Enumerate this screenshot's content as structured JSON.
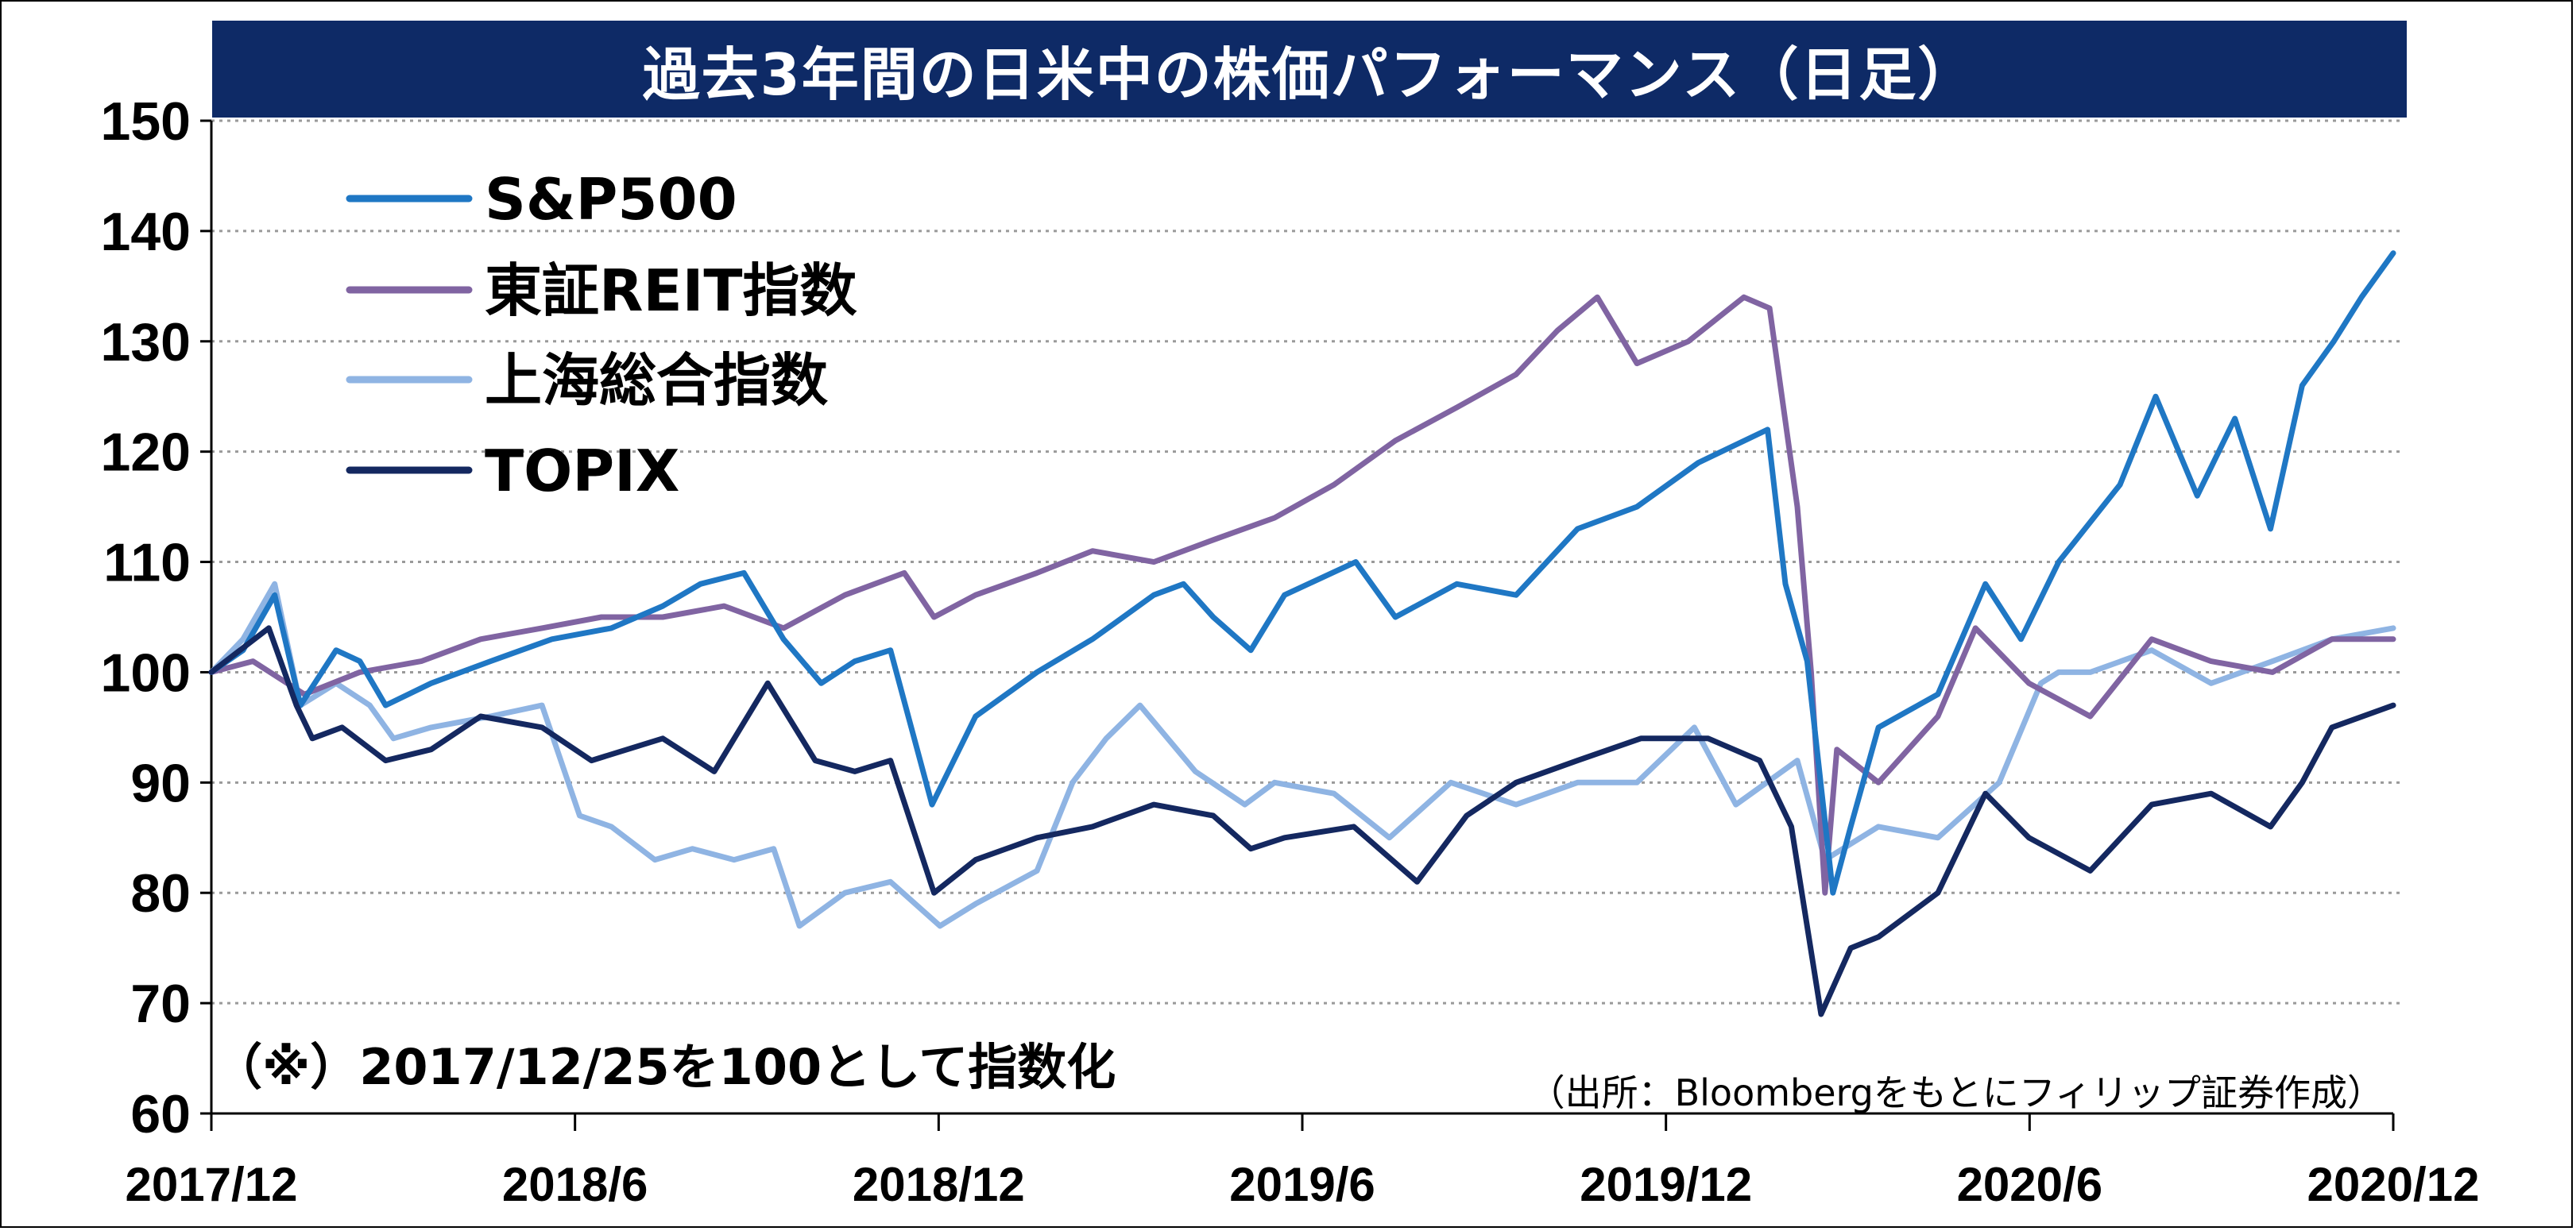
{
  "chart_data": {
    "type": "line",
    "title": "過去3年間の日米中の株価パフォーマンス（日足）",
    "xlabel": "",
    "ylabel": "",
    "ylim": [
      60,
      150
    ],
    "yticks": [
      60,
      70,
      80,
      90,
      100,
      110,
      120,
      130,
      140,
      150
    ],
    "xlim": [
      "2017-12-25",
      "2020-12-31"
    ],
    "xticks": [
      "2017/12",
      "2018/6",
      "2018/12",
      "2019/6",
      "2019/12",
      "2020/6",
      "2020/12"
    ],
    "grid": "horizontal dotted",
    "legend_position": "top-left",
    "note": "（※）2017/12/25を100として指数化",
    "source": "（出所：Bloombergをもとにフィリップ証券作成）",
    "series": [
      {
        "name": "S&P500",
        "color": "#1f77c4",
        "points": [
          [
            "2017-12-25",
            100
          ],
          [
            "2018-01-10",
            102
          ],
          [
            "2018-01-26",
            107
          ],
          [
            "2018-02-08",
            97
          ],
          [
            "2018-02-26",
            102
          ],
          [
            "2018-03-10",
            101
          ],
          [
            "2018-03-23",
            97
          ],
          [
            "2018-04-15",
            99
          ],
          [
            "2018-05-15",
            101
          ],
          [
            "2018-06-15",
            103
          ],
          [
            "2018-07-15",
            104
          ],
          [
            "2018-08-10",
            106
          ],
          [
            "2018-08-29",
            108
          ],
          [
            "2018-09-20",
            109
          ],
          [
            "2018-10-10",
            103
          ],
          [
            "2018-10-29",
            99
          ],
          [
            "2018-11-15",
            101
          ],
          [
            "2018-12-03",
            102
          ],
          [
            "2018-12-24",
            88
          ],
          [
            "2019-01-15",
            96
          ],
          [
            "2019-02-15",
            100
          ],
          [
            "2019-03-15",
            103
          ],
          [
            "2019-04-15",
            107
          ],
          [
            "2019-04-30",
            108
          ],
          [
            "2019-05-15",
            105
          ],
          [
            "2019-06-03",
            102
          ],
          [
            "2019-06-20",
            107
          ],
          [
            "2019-07-26",
            110
          ],
          [
            "2019-08-15",
            105
          ],
          [
            "2019-09-15",
            108
          ],
          [
            "2019-10-15",
            107
          ],
          [
            "2019-11-15",
            113
          ],
          [
            "2019-12-15",
            115
          ],
          [
            "2020-01-15",
            119
          ],
          [
            "2020-02-19",
            122
          ],
          [
            "2020-02-28",
            108
          ],
          [
            "2020-03-10",
            101
          ],
          [
            "2020-03-23",
            80
          ],
          [
            "2020-04-01",
            86
          ],
          [
            "2020-04-15",
            95
          ],
          [
            "2020-05-15",
            98
          ],
          [
            "2020-06-08",
            108
          ],
          [
            "2020-06-26",
            103
          ],
          [
            "2020-07-15",
            110
          ],
          [
            "2020-08-15",
            117
          ],
          [
            "2020-09-02",
            125
          ],
          [
            "2020-09-23",
            116
          ],
          [
            "2020-10-12",
            123
          ],
          [
            "2020-10-30",
            113
          ],
          [
            "2020-11-15",
            126
          ],
          [
            "2020-12-01",
            130
          ],
          [
            "2020-12-15",
            134
          ],
          [
            "2020-12-31",
            138
          ]
        ]
      },
      {
        "name": "東証REIT指数",
        "color": "#8064a2",
        "points": [
          [
            "2017-12-25",
            100
          ],
          [
            "2018-01-15",
            101
          ],
          [
            "2018-02-10",
            98
          ],
          [
            "2018-03-10",
            100
          ],
          [
            "2018-04-10",
            101
          ],
          [
            "2018-05-10",
            103
          ],
          [
            "2018-06-10",
            104
          ],
          [
            "2018-07-10",
            105
          ],
          [
            "2018-08-10",
            105
          ],
          [
            "2018-09-10",
            106
          ],
          [
            "2018-10-10",
            104
          ],
          [
            "2018-11-10",
            107
          ],
          [
            "2018-12-10",
            109
          ],
          [
            "2018-12-25",
            105
          ],
          [
            "2019-01-15",
            107
          ],
          [
            "2019-02-15",
            109
          ],
          [
            "2019-03-15",
            111
          ],
          [
            "2019-04-15",
            110
          ],
          [
            "2019-05-15",
            112
          ],
          [
            "2019-06-15",
            114
          ],
          [
            "2019-07-15",
            117
          ],
          [
            "2019-08-15",
            121
          ],
          [
            "2019-09-15",
            124
          ],
          [
            "2019-10-15",
            127
          ],
          [
            "2019-11-05",
            131
          ],
          [
            "2019-11-25",
            134
          ],
          [
            "2019-12-15",
            128
          ],
          [
            "2020-01-10",
            130
          ],
          [
            "2020-02-07",
            134
          ],
          [
            "2020-02-20",
            133
          ],
          [
            "2020-03-05",
            115
          ],
          [
            "2020-03-12",
            100
          ],
          [
            "2020-03-19",
            80
          ],
          [
            "2020-03-25",
            93
          ],
          [
            "2020-04-15",
            90
          ],
          [
            "2020-05-15",
            96
          ],
          [
            "2020-06-03",
            104
          ],
          [
            "2020-06-30",
            99
          ],
          [
            "2020-07-31",
            96
          ],
          [
            "2020-08-31",
            103
          ],
          [
            "2020-09-30",
            101
          ],
          [
            "2020-10-31",
            100
          ],
          [
            "2020-11-30",
            103
          ],
          [
            "2020-12-31",
            103
          ]
        ]
      },
      {
        "name": "上海総合指数",
        "color": "#8fb4e3",
        "points": [
          [
            "2017-12-25",
            100
          ],
          [
            "2018-01-10",
            103
          ],
          [
            "2018-01-26",
            108
          ],
          [
            "2018-02-08",
            97
          ],
          [
            "2018-02-26",
            99
          ],
          [
            "2018-03-15",
            97
          ],
          [
            "2018-03-27",
            94
          ],
          [
            "2018-04-15",
            95
          ],
          [
            "2018-05-15",
            96
          ],
          [
            "2018-06-10",
            97
          ],
          [
            "2018-06-29",
            87
          ],
          [
            "2018-07-15",
            86
          ],
          [
            "2018-08-06",
            83
          ],
          [
            "2018-08-25",
            84
          ],
          [
            "2018-09-15",
            83
          ],
          [
            "2018-10-05",
            84
          ],
          [
            "2018-10-18",
            77
          ],
          [
            "2018-11-10",
            80
          ],
          [
            "2018-12-03",
            81
          ],
          [
            "2018-12-28",
            77
          ],
          [
            "2019-01-15",
            79
          ],
          [
            "2019-02-15",
            82
          ],
          [
            "2019-03-05",
            90
          ],
          [
            "2019-03-22",
            94
          ],
          [
            "2019-04-08",
            97
          ],
          [
            "2019-05-06",
            91
          ],
          [
            "2019-05-31",
            88
          ],
          [
            "2019-06-15",
            90
          ],
          [
            "2019-07-15",
            89
          ],
          [
            "2019-08-12",
            85
          ],
          [
            "2019-09-12",
            90
          ],
          [
            "2019-10-15",
            88
          ],
          [
            "2019-11-15",
            90
          ],
          [
            "2019-12-15",
            90
          ],
          [
            "2020-01-13",
            95
          ],
          [
            "2020-02-03",
            88
          ],
          [
            "2020-03-05",
            92
          ],
          [
            "2020-03-19",
            83
          ],
          [
            "2020-04-15",
            86
          ],
          [
            "2020-05-15",
            85
          ],
          [
            "2020-06-15",
            90
          ],
          [
            "2020-07-06",
            99
          ],
          [
            "2020-07-15",
            100
          ],
          [
            "2020-07-31",
            100
          ],
          [
            "2020-08-31",
            102
          ],
          [
            "2020-09-30",
            99
          ],
          [
            "2020-10-31",
            101
          ],
          [
            "2020-11-30",
            103
          ],
          [
            "2020-12-31",
            104
          ]
        ]
      },
      {
        "name": "TOPIX",
        "color": "#142860",
        "points": [
          [
            "2017-12-25",
            100
          ],
          [
            "2018-01-23",
            104
          ],
          [
            "2018-02-06",
            97
          ],
          [
            "2018-02-14",
            94
          ],
          [
            "2018-03-01",
            95
          ],
          [
            "2018-03-23",
            92
          ],
          [
            "2018-04-15",
            93
          ],
          [
            "2018-05-10",
            96
          ],
          [
            "2018-06-10",
            95
          ],
          [
            "2018-07-05",
            92
          ],
          [
            "2018-08-10",
            94
          ],
          [
            "2018-09-05",
            91
          ],
          [
            "2018-10-02",
            99
          ],
          [
            "2018-10-26",
            92
          ],
          [
            "2018-11-15",
            91
          ],
          [
            "2018-12-03",
            92
          ],
          [
            "2018-12-25",
            80
          ],
          [
            "2019-01-15",
            83
          ],
          [
            "2019-02-15",
            85
          ],
          [
            "2019-03-15",
            86
          ],
          [
            "2019-04-15",
            88
          ],
          [
            "2019-05-15",
            87
          ],
          [
            "2019-06-03",
            84
          ],
          [
            "2019-06-20",
            85
          ],
          [
            "2019-07-25",
            86
          ],
          [
            "2019-08-26",
            81
          ],
          [
            "2019-09-20",
            87
          ],
          [
            "2019-10-15",
            90
          ],
          [
            "2019-11-15",
            92
          ],
          [
            "2019-12-17",
            94
          ],
          [
            "2020-01-20",
            94
          ],
          [
            "2020-02-15",
            92
          ],
          [
            "2020-03-02",
            86
          ],
          [
            "2020-03-17",
            69
          ],
          [
            "2020-04-01",
            75
          ],
          [
            "2020-04-15",
            76
          ],
          [
            "2020-05-15",
            80
          ],
          [
            "2020-06-08",
            89
          ],
          [
            "2020-06-30",
            85
          ],
          [
            "2020-07-31",
            82
          ],
          [
            "2020-08-31",
            88
          ],
          [
            "2020-09-30",
            89
          ],
          [
            "2020-10-30",
            86
          ],
          [
            "2020-11-15",
            90
          ],
          [
            "2020-11-30",
            95
          ],
          [
            "2020-12-31",
            97
          ]
        ]
      }
    ]
  }
}
